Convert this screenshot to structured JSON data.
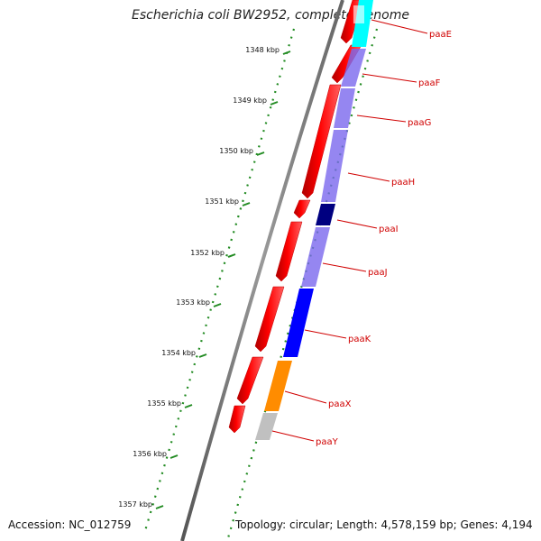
{
  "title": "Escherichia coli BW2952, complete genome",
  "footer": {
    "accession": "Accession: NC_012759",
    "topology": "Topology: circular; Length: 4,578,159 bp; Genes: 4,194"
  },
  "ticks": [
    "1348 kbp",
    "1349 kbp",
    "1350 kbp",
    "1351 kbp",
    "1352 kbp",
    "1353 kbp",
    "1354 kbp",
    "1355 kbp",
    "1356 kbp",
    "1357 kbp"
  ],
  "genes": [
    {
      "label": "paaE",
      "color": "#00ffff"
    },
    {
      "label": "paaF",
      "color": "#7b68ee"
    },
    {
      "label": "paaG",
      "color": "#7b68ee"
    },
    {
      "label": "paaH",
      "color": "#7b68ee"
    },
    {
      "label": "paaI",
      "color": "#000080"
    },
    {
      "label": "paaJ",
      "color": "#7b68ee"
    },
    {
      "label": "paaK",
      "color": "#0000ff"
    },
    {
      "label": "paaX",
      "color": "#ff8c00"
    },
    {
      "label": "paaY",
      "color": "#c0c0c0"
    }
  ],
  "colors": {
    "cds": "#ff0000",
    "backbone": "#808080",
    "ticks": "#228b22",
    "label": "#d00000"
  }
}
